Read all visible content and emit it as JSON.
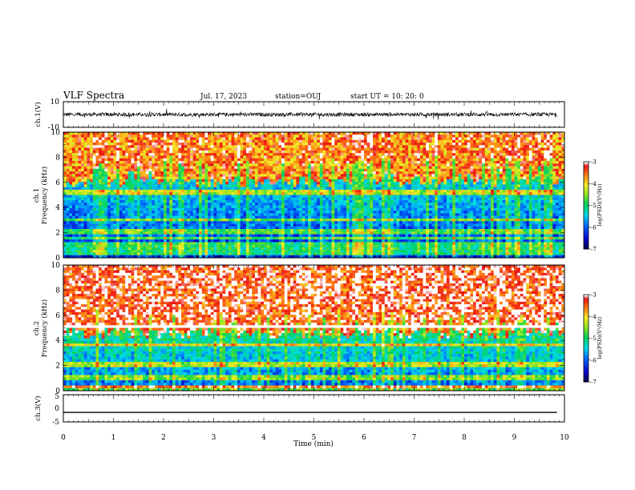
{
  "header": {
    "title": "VLF Spectra",
    "date": "Jul. 17, 2023",
    "station": "station=OUJ",
    "start": "start UT =  10: 20: 0"
  },
  "chart_data": [
    {
      "type": "line",
      "name": "ch1-waveform",
      "ylabel": "ch.1(V)",
      "ylim": [
        -10,
        10
      ],
      "y_ticks": [
        "10",
        "-10"
      ],
      "baseline": 0,
      "noise_amplitude": 1.5
    },
    {
      "type": "heatmap",
      "name": "ch1-spectrogram",
      "ylabel_top": "ch.1",
      "ylabel": "Frequency (kHz)",
      "ylim": [
        0,
        10
      ],
      "y_ticks": [
        "0",
        "2",
        "4",
        "6",
        "8",
        "10"
      ],
      "colorbar": {
        "label": "log(PSD)(V²/Hz)",
        "ticks": [
          "-3",
          "-4",
          "-5",
          "-6",
          "-7"
        ],
        "range": [
          -7,
          -3
        ]
      },
      "band_boundary_khz": 6.0,
      "low_level": -6.3,
      "high_level": -3.6
    },
    {
      "type": "heatmap",
      "name": "ch2-spectrogram",
      "ylabel_top": "ch.2",
      "ylabel": "Frequency (kHz)",
      "ylim": [
        0,
        10
      ],
      "y_ticks": [
        "0",
        "2",
        "4",
        "6",
        "8",
        "10"
      ],
      "colorbar": {
        "label": "log(PSD)(V²/Hz)",
        "ticks": [
          "-3",
          "-4",
          "-5",
          "-6",
          "-7"
        ],
        "range": [
          -7,
          -3
        ]
      },
      "band_boundary_khz": 4.5,
      "low_level": -6.0,
      "high_level": -3.3
    },
    {
      "type": "line",
      "name": "ch3-voltage",
      "ylabel": "ch.3(V)",
      "ylim": [
        -5,
        5
      ],
      "y_ticks": [
        "5",
        "0",
        "-5"
      ],
      "x": [
        0,
        9.85
      ],
      "y": [
        -1.5,
        -1.5
      ]
    }
  ],
  "x_axis": {
    "label": "Time (min)",
    "range": [
      0,
      10
    ],
    "ticks": [
      "0",
      "1",
      "2",
      "3",
      "4",
      "5",
      "6",
      "7",
      "8",
      "9",
      "10"
    ]
  }
}
